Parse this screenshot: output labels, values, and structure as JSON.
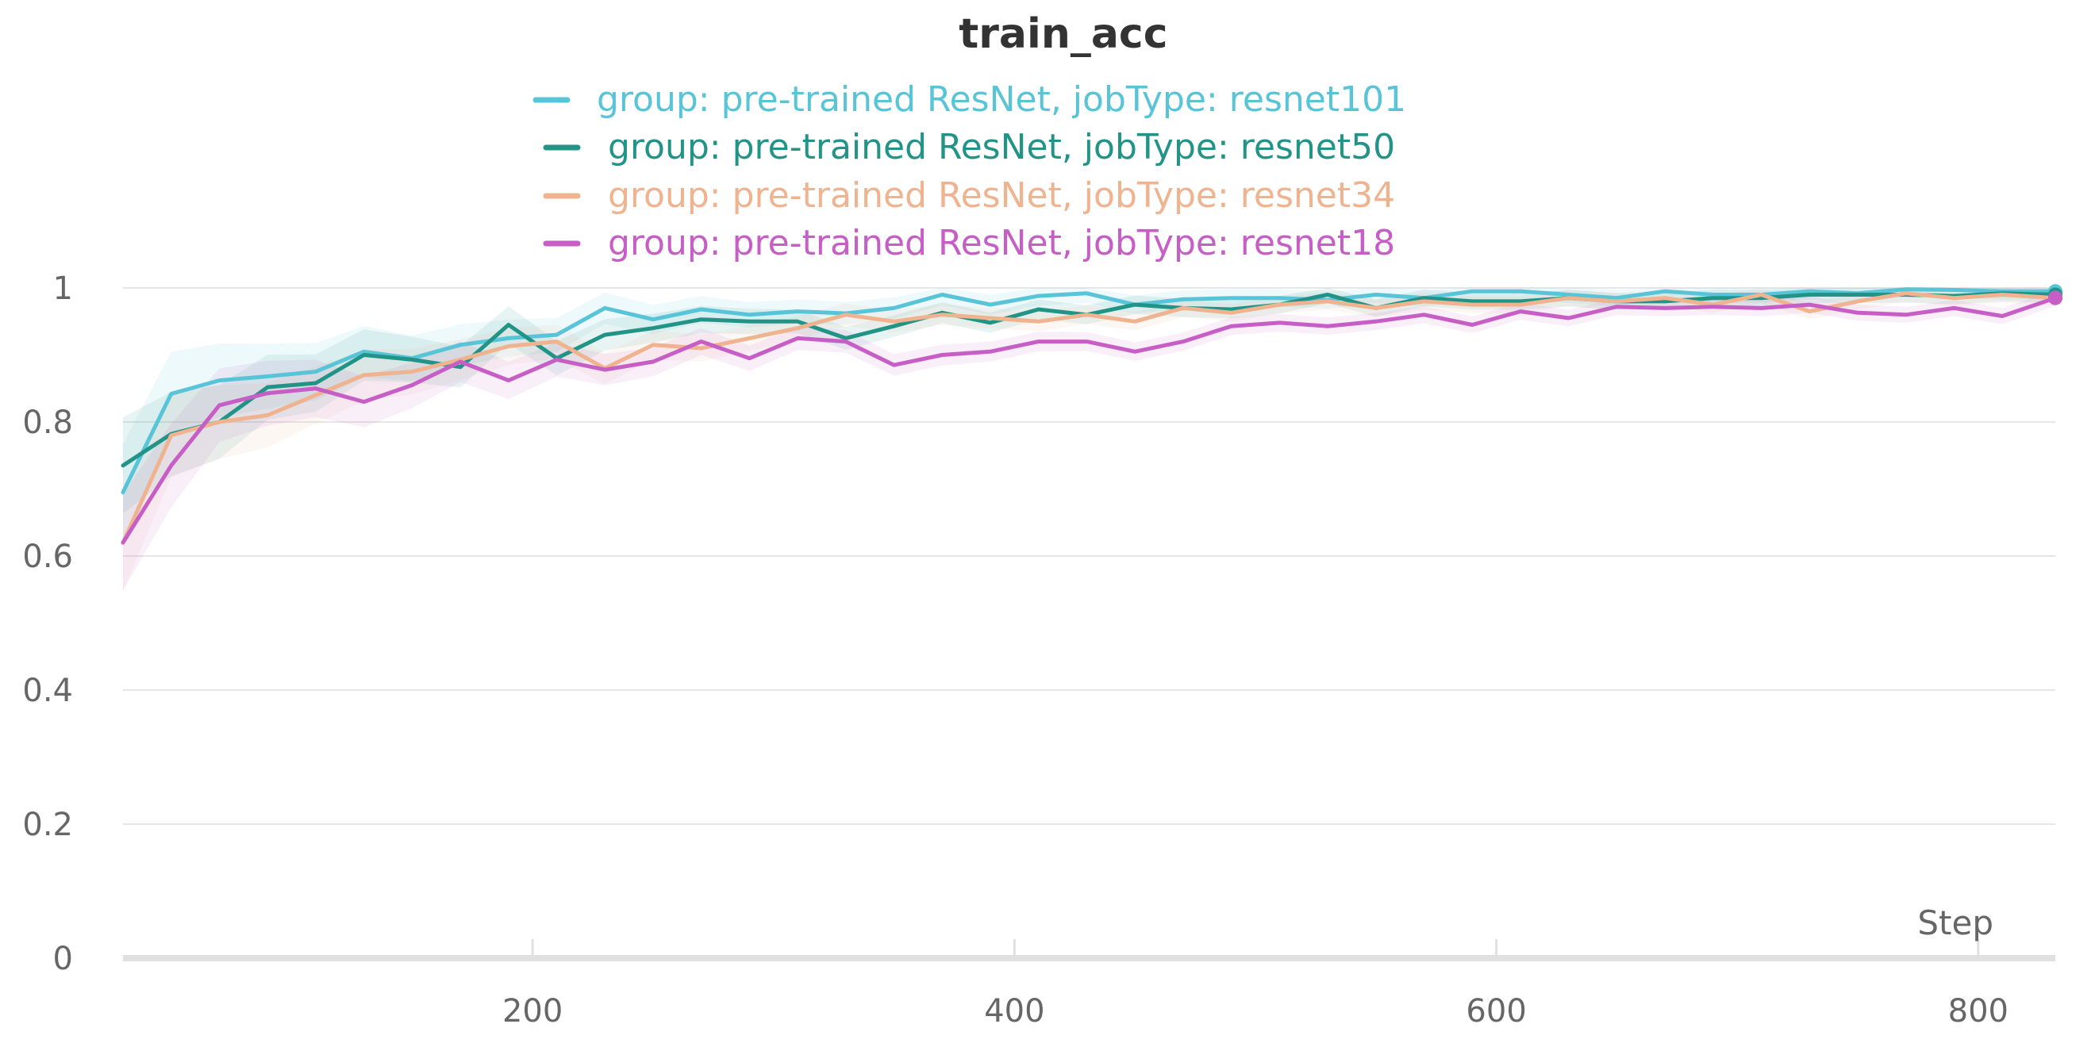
{
  "chart_data": {
    "type": "line",
    "title": "train_acc",
    "xlabel": "Step",
    "ylabel": "",
    "xlim": [
      30,
      832
    ],
    "ylim": [
      0,
      1
    ],
    "xticks": [
      200,
      400,
      600,
      800
    ],
    "yticks": [
      0,
      0.2,
      0.4,
      0.6,
      0.8,
      1
    ],
    "grid": true,
    "legend_position": "top-center",
    "x": [
      30,
      50,
      70,
      90,
      110,
      130,
      150,
      170,
      190,
      210,
      230,
      250,
      270,
      290,
      310,
      330,
      350,
      370,
      390,
      410,
      430,
      450,
      470,
      490,
      510,
      530,
      550,
      570,
      590,
      610,
      630,
      650,
      670,
      690,
      710,
      730,
      750,
      770,
      790,
      810,
      832
    ],
    "series": [
      {
        "name": "group: pre-trained ResNet, jobType: resnet101",
        "color": "#58c4d8",
        "values": [
          0.695,
          0.842,
          0.862,
          0.868,
          0.875,
          0.905,
          0.895,
          0.915,
          0.925,
          0.93,
          0.97,
          0.953,
          0.968,
          0.96,
          0.965,
          0.962,
          0.97,
          0.99,
          0.975,
          0.988,
          0.992,
          0.975,
          0.983,
          0.985,
          0.985,
          0.982,
          0.99,
          0.985,
          0.995,
          0.995,
          0.99,
          0.985,
          0.995,
          0.99,
          0.99,
          0.995,
          0.992,
          0.998,
          0.997,
          0.995,
          0.995
        ]
      },
      {
        "name": "group: pre-trained ResNet, jobType: resnet50",
        "color": "#229487",
        "values": [
          0.735,
          0.782,
          0.8,
          0.852,
          0.858,
          0.9,
          0.893,
          0.882,
          0.945,
          0.895,
          0.93,
          0.94,
          0.953,
          0.95,
          0.95,
          0.925,
          0.943,
          0.963,
          0.948,
          0.968,
          0.96,
          0.975,
          0.97,
          0.968,
          0.975,
          0.99,
          0.97,
          0.985,
          0.98,
          0.98,
          0.985,
          0.98,
          0.98,
          0.985,
          0.985,
          0.99,
          0.99,
          0.99,
          0.988,
          0.992,
          0.99
        ]
      },
      {
        "name": "group: pre-trained ResNet, jobType: resnet34",
        "color": "#efb38f",
        "values": [
          0.62,
          0.78,
          0.8,
          0.81,
          0.84,
          0.87,
          0.875,
          0.893,
          0.913,
          0.92,
          0.88,
          0.915,
          0.91,
          0.925,
          0.94,
          0.96,
          0.95,
          0.96,
          0.955,
          0.95,
          0.96,
          0.95,
          0.97,
          0.963,
          0.975,
          0.98,
          0.97,
          0.98,
          0.975,
          0.975,
          0.985,
          0.98,
          0.985,
          0.975,
          0.99,
          0.965,
          0.98,
          0.992,
          0.985,
          0.99,
          0.985
        ]
      },
      {
        "name": "group: pre-trained ResNet, jobType: resnet18",
        "color": "#c65ec6",
        "values": [
          0.62,
          0.735,
          0.825,
          0.843,
          0.85,
          0.83,
          0.855,
          0.89,
          0.862,
          0.893,
          0.878,
          0.89,
          0.92,
          0.895,
          0.925,
          0.92,
          0.885,
          0.9,
          0.905,
          0.92,
          0.92,
          0.905,
          0.92,
          0.943,
          0.948,
          0.943,
          0.95,
          0.96,
          0.945,
          0.965,
          0.955,
          0.972,
          0.97,
          0.972,
          0.97,
          0.975,
          0.963,
          0.96,
          0.97,
          0.958,
          0.985
        ]
      }
    ]
  }
}
